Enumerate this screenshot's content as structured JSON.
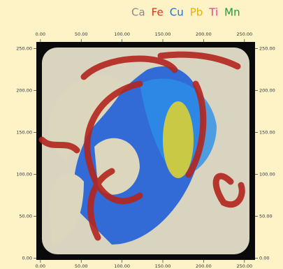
{
  "chart_data": {
    "type": "image",
    "legend": [
      {
        "name": "Ca",
        "color": "#8a8a8a"
      },
      {
        "name": "Fe",
        "color": "#e0301e"
      },
      {
        "name": "Cu",
        "color": "#1f6fd0"
      },
      {
        "name": "Pb",
        "color": "#eab000"
      },
      {
        "name": "Ti",
        "color": "#e0409a"
      },
      {
        "name": "Mn",
        "color": "#1e9a3c"
      }
    ],
    "xlim": [
      -5,
      263
    ],
    "ylim": [
      -2,
      258
    ],
    "xticks": [
      {
        "value": 0,
        "label": "0.00"
      },
      {
        "value": 50,
        "label": "50.00"
      },
      {
        "value": 100,
        "label": "100.00"
      },
      {
        "value": 150,
        "label": "150.00"
      },
      {
        "value": 200,
        "label": "200.00"
      },
      {
        "value": 250,
        "label": "250.00"
      }
    ],
    "yticks": [
      {
        "value": 0,
        "label": "0.00"
      },
      {
        "value": 50,
        "label": "50.00"
      },
      {
        "value": 100,
        "label": "100.00"
      },
      {
        "value": 150,
        "label": "150.00"
      },
      {
        "value": 200,
        "label": "200.00"
      },
      {
        "value": 250,
        "label": "250.00"
      }
    ]
  }
}
